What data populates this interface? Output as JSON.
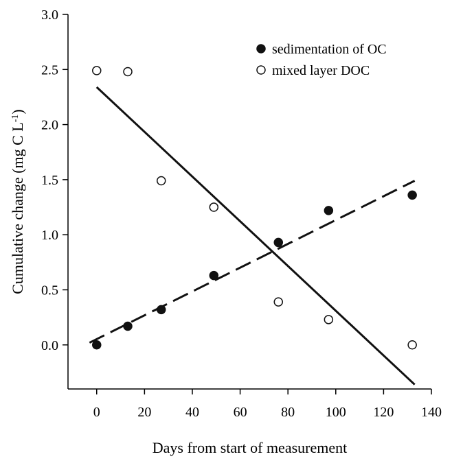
{
  "chart_data": {
    "type": "scatter",
    "title": "",
    "xlabel": "Days from start of measurement",
    "ylabel": "Cumulative change (mg C L",
    "ylabel_sup": "-1",
    "ylabel_suffix": ")",
    "xlim": [
      -12,
      140
    ],
    "ylim": [
      -0.4,
      3.0
    ],
    "xticks": [
      0,
      20,
      40,
      60,
      80,
      100,
      120,
      140
    ],
    "xtick_labels": [
      "0",
      "20",
      "40",
      "60",
      "80",
      "100",
      "120",
      "140"
    ],
    "yticks": [
      0.0,
      0.5,
      1.0,
      1.5,
      2.0,
      2.5,
      3.0
    ],
    "ytick_labels": [
      "0.0",
      "0.5",
      "1.0",
      "1.5",
      "2.0",
      "2.5",
      "3.0"
    ],
    "legend_position": "top-right",
    "series": [
      {
        "name": "sedimentation of OC",
        "marker": "filled-circle",
        "color": "#111111",
        "x": [
          0,
          13,
          27,
          49,
          76,
          97,
          132
        ],
        "y": [
          0.0,
          0.17,
          0.32,
          0.63,
          0.93,
          1.22,
          1.36
        ],
        "fit": {
          "style": "dashed",
          "x": [
            -3,
            133
          ],
          "y": [
            0.02,
            1.49
          ]
        }
      },
      {
        "name": "mixed layer DOC",
        "marker": "open-circle",
        "color": "#111111",
        "x": [
          0,
          13,
          27,
          49,
          76,
          97,
          132
        ],
        "y": [
          2.49,
          2.48,
          1.49,
          1.25,
          0.39,
          0.23,
          0.0
        ],
        "fit": {
          "style": "solid",
          "x": [
            0,
            133
          ],
          "y": [
            2.34,
            -0.36
          ]
        }
      }
    ]
  }
}
